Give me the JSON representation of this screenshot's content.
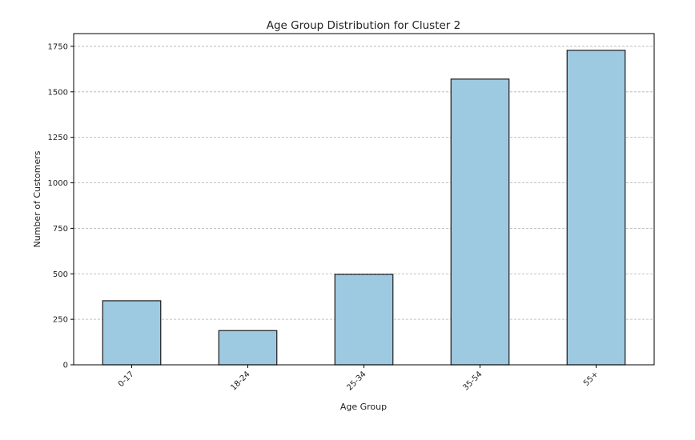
{
  "chart_data": {
    "type": "bar",
    "title": "Age Group Distribution for Cluster 2",
    "xlabel": "Age Group",
    "ylabel": "Number of Customers",
    "categories": [
      "0-17",
      "18-24",
      "25-34",
      "35-54",
      "55+"
    ],
    "values": [
      352,
      188,
      497,
      1570,
      1728
    ],
    "yticks": [
      0,
      250,
      500,
      750,
      1000,
      1250,
      1500,
      1750
    ],
    "ylim": [
      0,
      1820
    ],
    "grid": "y-dashed",
    "legend": "none",
    "bar_color": "#9ecae1",
    "edge_color": "#1a1a1a"
  }
}
